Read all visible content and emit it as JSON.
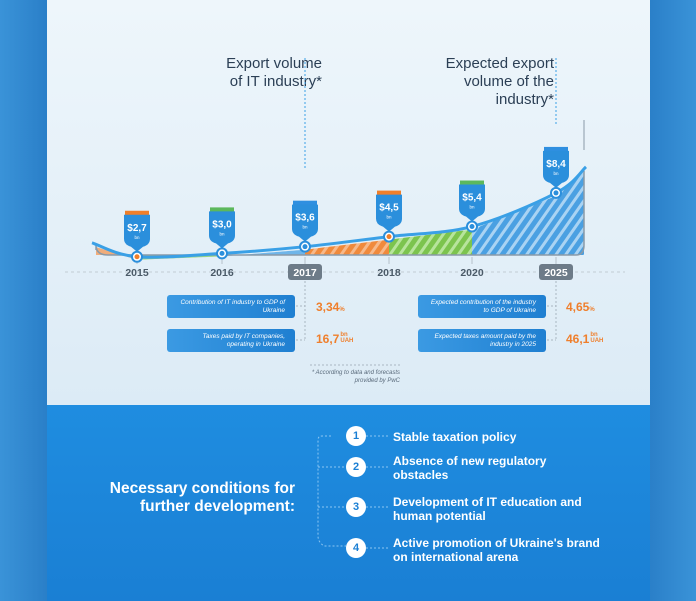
{
  "chart_data": {
    "type": "area",
    "x": [
      "2015",
      "2016",
      "2017",
      "2018",
      "2020",
      "2025"
    ],
    "series": [
      {
        "values": [
          2.7,
          3.0,
          3.6,
          4.5,
          5.4,
          8.4
        ]
      }
    ],
    "value_labels": [
      "$2,7",
      "$3,0",
      "$3,6",
      "$4,5",
      "$5,4",
      "$8,4"
    ],
    "unit_label": "bn",
    "annotations": [
      "Export volume of IT industry*",
      "Expected export volume of the industry*"
    ],
    "highlighted_x": [
      "2017",
      "2025"
    ],
    "segment_colors": [
      "#f2a166",
      "#8dd06a",
      "#5aaae6",
      "#f08a3c",
      "#7cc44e",
      "#4aa0e2"
    ],
    "tab_colors": [
      "#f07f2a",
      "#5cb85c",
      "#2f8fe0",
      "#f07f2a",
      "#5cb85c",
      "#2f8fe0"
    ]
  },
  "headings": {
    "left": [
      "Export volume",
      "of IT industry*"
    ],
    "right": [
      "Expected export",
      "volume of the",
      "industry*"
    ]
  },
  "stats": {
    "gdp_label": "Contribution of IT industry to GDP of Ukraine",
    "gdp_value": "3,34",
    "gdp_unit": "%",
    "taxes_label": "Taxes paid by IT companies, operating in Ukraine",
    "taxes_value": "16,7",
    "taxes_unit_top": "bn",
    "taxes_unit_bottom": "UAH",
    "exp_gdp_label": "Expected contribution of the industry to GDP of Ukraine",
    "exp_gdp_value": "4,65",
    "exp_gdp_unit": "%",
    "exp_taxes_label": "Expected taxes amount paid by the industry in 2025",
    "exp_taxes_value": "46,1",
    "exp_taxes_unit_top": "bn",
    "exp_taxes_unit_bottom": "UAH"
  },
  "note": [
    "* According to data and forecasts",
    "provided by PwC"
  ],
  "conditions": {
    "title": [
      "Necessary conditions for",
      "further development:"
    ],
    "items": [
      {
        "num": "1",
        "lines": [
          "Stable taxation policy"
        ]
      },
      {
        "num": "2",
        "lines": [
          "Absence of new regulatory",
          "obstacles"
        ]
      },
      {
        "num": "3",
        "lines": [
          "Development of IT education and",
          "human potential"
        ]
      },
      {
        "num": "4",
        "lines": [
          "Active promotion of Ukraine's brand",
          "on international arena"
        ]
      }
    ]
  }
}
